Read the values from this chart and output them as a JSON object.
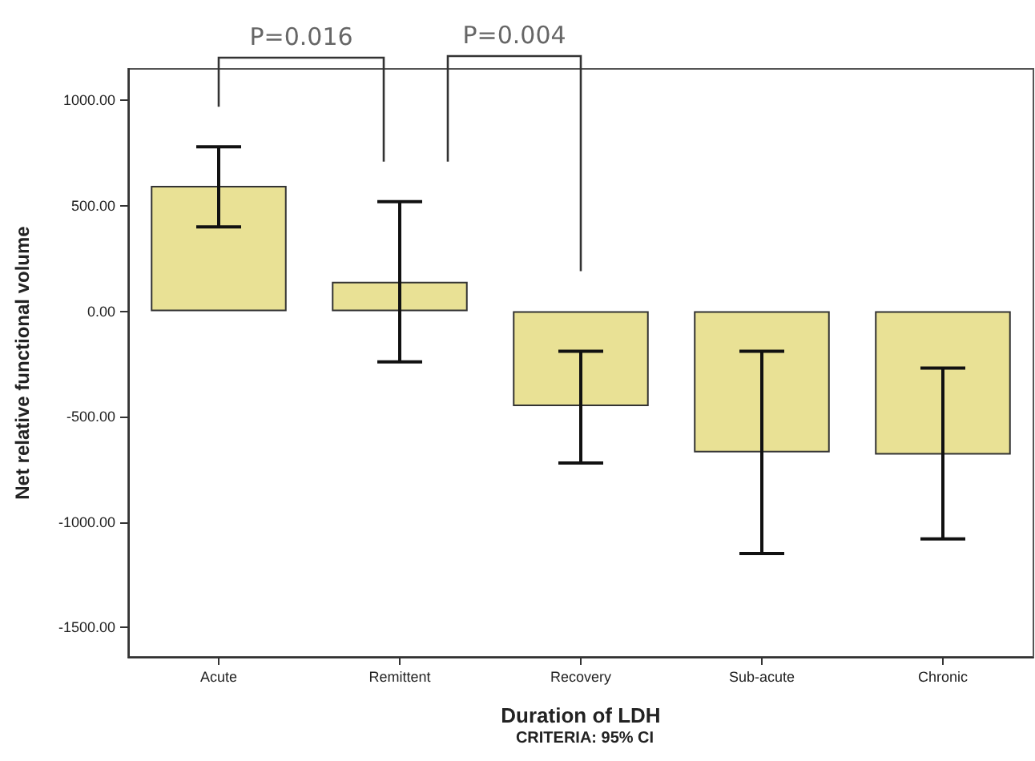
{
  "chart_data": {
    "type": "bar",
    "xlabel": "Duration of LDH",
    "ylabel": "Net relative functional volume",
    "categories": [
      "Acute",
      "Remittent",
      "Recovery",
      "Sub-acute",
      "Chronic"
    ],
    "values": [
      595,
      140,
      -450,
      -670,
      -680
    ],
    "errors": [
      [
        400,
        780
      ],
      [
        -240,
        520
      ],
      [
        -720,
        -190
      ],
      [
        -1150,
        -190
      ],
      [
        -1080,
        -270
      ]
    ],
    "color": "#e9e195",
    "ylim": [
      -1640,
      1150
    ],
    "yticks": [
      {
        "value": -1500,
        "label": "-1500.00"
      },
      {
        "value": -1000,
        "label": "-1000.00"
      },
      {
        "value": -500,
        "label": "-500.00"
      },
      {
        "value": 0,
        "label": "0.00"
      },
      {
        "value": 500,
        "label": "500.00"
      },
      {
        "value": 1000,
        "label": "1000.00"
      }
    ],
    "grid": false,
    "annotations": [
      "P=0.016",
      "P=0.004",
      "CRITERIA: 95% CI"
    ]
  }
}
